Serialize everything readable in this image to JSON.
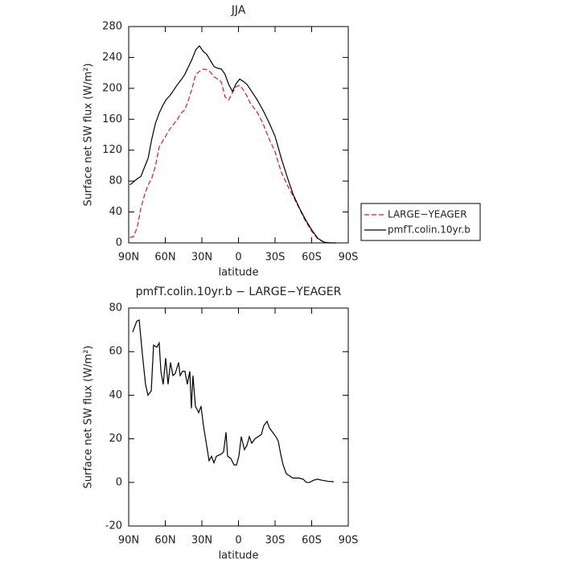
{
  "chart_data": [
    {
      "type": "line",
      "title": "JJA",
      "xlabel": "latitude",
      "ylabel": "Surface net SW flux (W/m²)",
      "x": [
        89,
        86,
        83,
        80,
        77,
        74,
        71,
        68,
        65,
        62,
        59,
        56,
        53,
        50,
        47,
        44,
        41,
        38,
        35,
        32,
        29,
        26,
        23,
        20,
        17,
        14,
        11,
        8,
        5,
        2,
        -1,
        -4,
        -7,
        -10,
        -15,
        -20,
        -25,
        -30,
        -35,
        -40,
        -45,
        -50,
        -55,
        -60,
        -65,
        -70,
        -75,
        -80
      ],
      "series": [
        {
          "name": "LARGE−YEAGER",
          "color": "#e8141c",
          "dash": "dashed",
          "values": [
            7,
            8,
            20,
            45,
            62,
            75,
            84,
            100,
            124,
            132,
            140,
            148,
            154,
            160,
            168,
            172,
            185,
            200,
            218,
            222,
            225,
            224,
            221,
            215,
            212,
            208,
            189,
            185,
            194,
            202,
            204,
            198,
            190,
            180,
            170,
            155,
            135,
            118,
            92,
            75,
            60,
            44,
            28,
            15,
            5,
            1,
            0,
            0
          ]
        },
        {
          "name": "pmfT.colin.10yr.b",
          "color": "#000000",
          "dash": "solid",
          "values": [
            75,
            79,
            83,
            86,
            98,
            110,
            135,
            155,
            168,
            178,
            186,
            191,
            198,
            205,
            211,
            218,
            228,
            238,
            250,
            255,
            248,
            244,
            236,
            228,
            226,
            225,
            218,
            205,
            196,
            206,
            212,
            209,
            205,
            198,
            186,
            172,
            156,
            138,
            110,
            85,
            62,
            45,
            30,
            17,
            6,
            1,
            0,
            0
          ]
        }
      ],
      "xlim": [
        90,
        -90
      ],
      "xticks": [
        {
          "value": 90,
          "label": "90N"
        },
        {
          "value": 60,
          "label": "60N"
        },
        {
          "value": 30,
          "label": "30N"
        },
        0,
        {
          "value": -30,
          "label": "30S"
        },
        {
          "value": -60,
          "label": "60S"
        },
        {
          "value": -90,
          "label": "90S"
        }
      ],
      "ylim": [
        0,
        280
      ],
      "yticks": [
        0,
        40,
        80,
        120,
        160,
        200,
        240,
        280
      ],
      "legend": "outside-right"
    },
    {
      "type": "line",
      "title": "pmfT.colin.10yr.b − LARGE−YEAGER",
      "xlabel": "latitude",
      "ylabel": "Surface net SW flux (W/m²)",
      "x": [
        86.7,
        83.4,
        81.4,
        78.8,
        76.2,
        74.2,
        71.5,
        69.6,
        66.9,
        65,
        63.6,
        61.7,
        59.7,
        57.7,
        55.7,
        53.7,
        51.8,
        49.1,
        47.8,
        45.8,
        43.9,
        41.9,
        39.9,
        38.6,
        37.3,
        35.3,
        32.6,
        30.7,
        28.7,
        26.1,
        24.1,
        22.1,
        20.1,
        18.1,
        14.2,
        12.2,
        10.2,
        8.9,
        6.3,
        3.6,
        1.6,
        -0.3,
        -2.3,
        -4.9,
        -6.9,
        -8.9,
        -10.9,
        -13.5,
        -16.1,
        -18.8,
        -20.7,
        -23.4,
        -25.4,
        -28,
        -30.7,
        -32.6,
        -34.6,
        -36.6,
        -39.2,
        -41.8,
        -44.5,
        -47.1,
        -49.7,
        -53,
        -55.7,
        -58.3,
        -61.6,
        -64.9,
        -68.2,
        -73.5,
        -78.1
      ],
      "series": [
        {
          "color": "#000000",
          "dash": "solid",
          "values": [
            69,
            74,
            74.5,
            59,
            45,
            40,
            42,
            63,
            62,
            64,
            51,
            45,
            57,
            45,
            55,
            49,
            50,
            55,
            49,
            51,
            51,
            45,
            51,
            34,
            49,
            35,
            32,
            35,
            26,
            17,
            10,
            12,
            9,
            12,
            13,
            14,
            23,
            12,
            11,
            8,
            8,
            12,
            21,
            15,
            17,
            21,
            18,
            20,
            21,
            22,
            26,
            28,
            25,
            23,
            21,
            19,
            13,
            8,
            4,
            3,
            2,
            2,
            2,
            1.5,
            0,
            0,
            1,
            1.5,
            1,
            0.5,
            0.3
          ]
        }
      ],
      "xlim": [
        90,
        -90
      ],
      "xticks": [
        {
          "value": 90,
          "label": "90N"
        },
        {
          "value": 60,
          "label": "60N"
        },
        {
          "value": 30,
          "label": "30N"
        },
        0,
        {
          "value": -30,
          "label": "30S"
        },
        {
          "value": -60,
          "label": "60S"
        },
        {
          "value": -90,
          "label": "90S"
        }
      ],
      "ylim": [
        -20,
        80
      ],
      "yticks": [
        -20,
        0,
        20,
        40,
        60,
        80
      ]
    }
  ]
}
